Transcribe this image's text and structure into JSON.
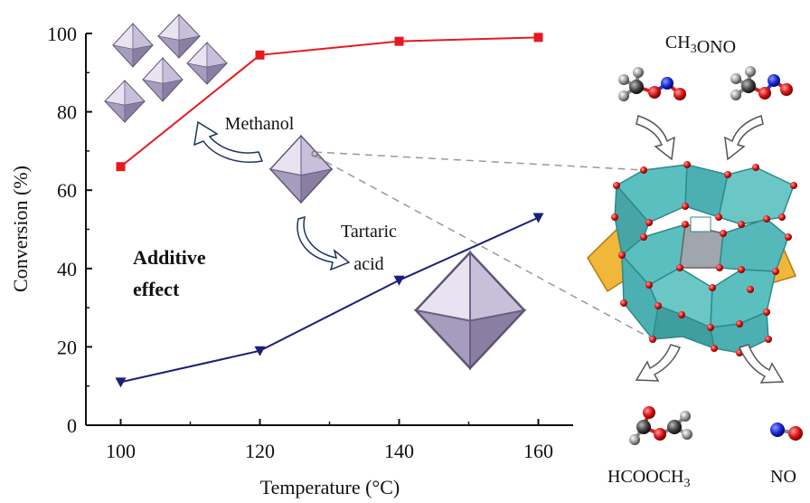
{
  "chart_data": {
    "type": "line",
    "xlabel": "Temperature (°C)",
    "ylabel": "Conversion (%)",
    "xlim": [
      95,
      165
    ],
    "ylim": [
      0,
      100
    ],
    "x_ticks": [
      "100",
      "120",
      "140",
      "160"
    ],
    "y_ticks": [
      "0",
      "20",
      "40",
      "60",
      "80",
      "100"
    ],
    "x": [
      100,
      120,
      140,
      160
    ],
    "series": [
      {
        "values": [
          66,
          94.5,
          98,
          99
        ],
        "color": "#e8191e",
        "marker": "square"
      },
      {
        "values": [
          11,
          19,
          37,
          53
        ],
        "color": "#1a1f7a",
        "marker": "triangle-down"
      }
    ],
    "annotations": {
      "methanol": "Methanol",
      "tartaric_line1": "Tartaric",
      "tartaric_line2": "acid",
      "additive_line1": "Additive",
      "additive_line2": "effect"
    },
    "molecule_labels": {
      "reactant": "CH3ONO",
      "product1": "HCOOCH3",
      "product2": "NO"
    }
  }
}
